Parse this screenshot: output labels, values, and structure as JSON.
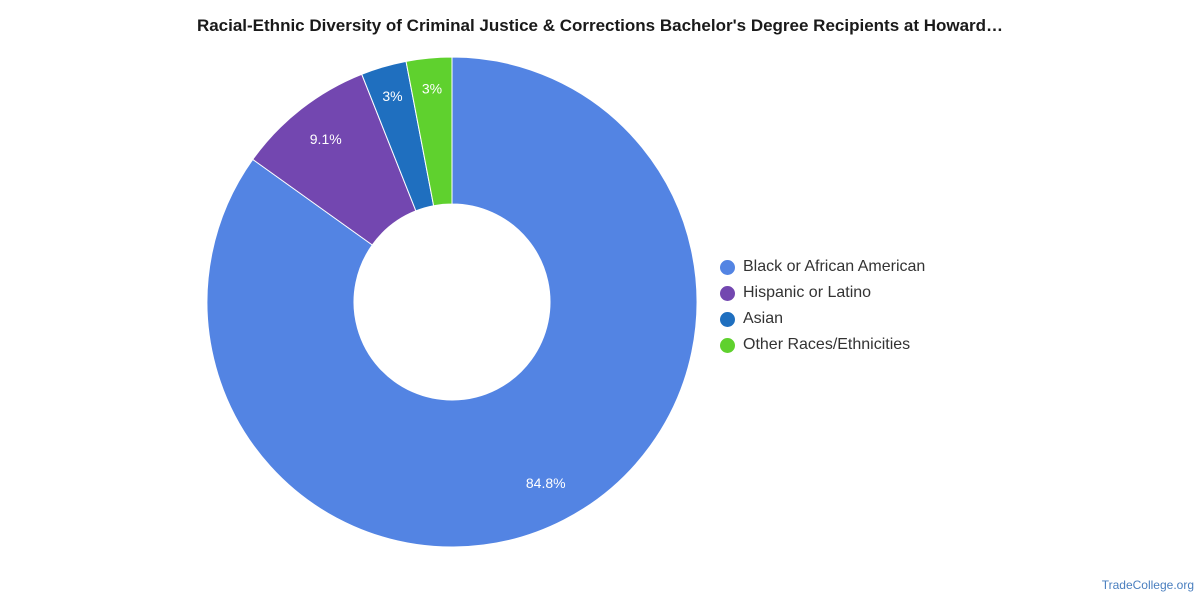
{
  "chart_data": {
    "type": "pie",
    "title": "Racial-Ethnic Diversity of Criminal Justice & Corrections Bachelor's Degree Recipients at Howard…",
    "donut": true,
    "legend_position": "right",
    "slices": [
      {
        "label": "Black or African American",
        "value": 84.8,
        "display": "84.8%",
        "color": "#5384e3"
      },
      {
        "label": "Hispanic or Latino",
        "value": 9.1,
        "display": "9.1%",
        "color": "#7347b0"
      },
      {
        "label": "Asian",
        "value": 3.0,
        "display": "3%",
        "color": "#1f6fbf"
      },
      {
        "label": "Other Races/Ethnicities",
        "value": 3.0,
        "display": "3%",
        "color": "#5fd12e"
      }
    ]
  },
  "footer": {
    "source": "TradeCollege.org"
  }
}
